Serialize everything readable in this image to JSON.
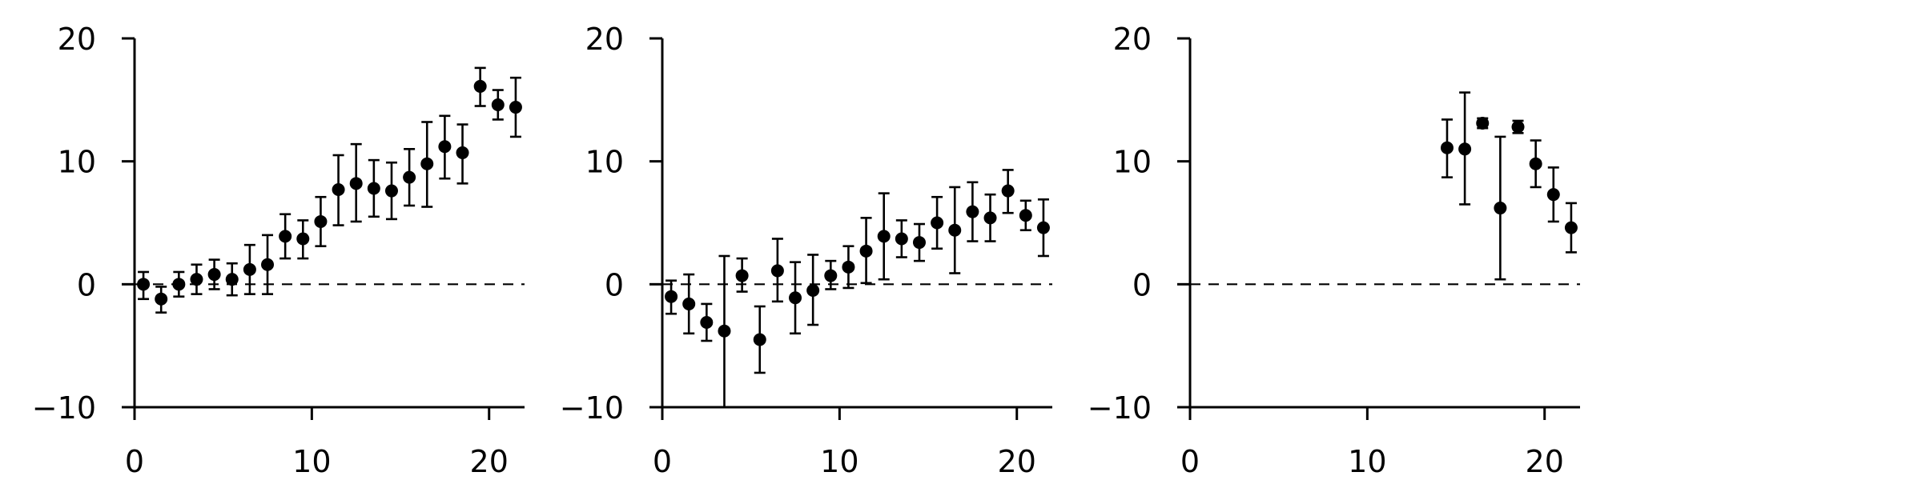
{
  "chart_data": [
    {
      "type": "scatter",
      "xlim": [
        0,
        22
      ],
      "ylim": [
        -10,
        20
      ],
      "xticks": [
        "0",
        "10",
        "20"
      ],
      "yticks": [
        "−10",
        "0",
        "10",
        "20"
      ],
      "grid": false,
      "reference_line": {
        "y": 0,
        "style": "dashed",
        "x_start": 0
      },
      "points": [
        {
          "x": 0.5,
          "y": 0.0,
          "low": -1.2,
          "high": 1.0
        },
        {
          "x": 1.5,
          "y": -1.2,
          "low": -2.3,
          "high": -0.2
        },
        {
          "x": 2.5,
          "y": 0.0,
          "low": -1.0,
          "high": 1.0
        },
        {
          "x": 3.5,
          "y": 0.4,
          "low": -0.8,
          "high": 1.6
        },
        {
          "x": 4.5,
          "y": 0.8,
          "low": -0.4,
          "high": 2.0
        },
        {
          "x": 5.5,
          "y": 0.4,
          "low": -0.9,
          "high": 1.7
        },
        {
          "x": 6.5,
          "y": 1.2,
          "low": -0.8,
          "high": 3.2
        },
        {
          "x": 7.5,
          "y": 1.6,
          "low": -0.8,
          "high": 4.0
        },
        {
          "x": 8.5,
          "y": 3.9,
          "low": 2.1,
          "high": 5.7
        },
        {
          "x": 9.5,
          "y": 3.7,
          "low": 2.1,
          "high": 5.2
        },
        {
          "x": 10.5,
          "y": 5.1,
          "low": 3.1,
          "high": 7.1
        },
        {
          "x": 11.5,
          "y": 7.7,
          "low": 4.8,
          "high": 10.5
        },
        {
          "x": 12.5,
          "y": 8.2,
          "low": 5.1,
          "high": 11.4
        },
        {
          "x": 13.5,
          "y": 7.8,
          "low": 5.5,
          "high": 10.1
        },
        {
          "x": 14.5,
          "y": 7.6,
          "low": 5.3,
          "high": 9.9
        },
        {
          "x": 15.5,
          "y": 8.7,
          "low": 6.4,
          "high": 11.0
        },
        {
          "x": 16.5,
          "y": 9.8,
          "low": 6.3,
          "high": 13.2
        },
        {
          "x": 17.5,
          "y": 11.2,
          "low": 8.6,
          "high": 13.7
        },
        {
          "x": 18.5,
          "y": 10.7,
          "low": 8.2,
          "high": 13.0
        },
        {
          "x": 19.5,
          "y": 16.1,
          "low": 14.5,
          "high": 17.6
        },
        {
          "x": 20.5,
          "y": 14.6,
          "low": 13.4,
          "high": 15.8
        },
        {
          "x": 21.5,
          "y": 14.4,
          "low": 12.0,
          "high": 16.8
        }
      ]
    },
    {
      "type": "scatter",
      "xlim": [
        0,
        22
      ],
      "ylim": [
        -10,
        20
      ],
      "xticks": [
        "0",
        "10",
        "20"
      ],
      "yticks": [
        "−10",
        "0",
        "10",
        "20"
      ],
      "grid": false,
      "reference_line": {
        "y": 0,
        "style": "dashed",
        "x_start": 0
      },
      "points": [
        {
          "x": 0.5,
          "y": -1.0,
          "low": -2.4,
          "high": 0.3
        },
        {
          "x": 1.5,
          "y": -1.6,
          "low": -4.0,
          "high": 0.8
        },
        {
          "x": 2.5,
          "y": -3.1,
          "low": -4.6,
          "high": -1.6
        },
        {
          "x": 3.5,
          "y": -3.8,
          "low": -10.0,
          "high": 2.3
        },
        {
          "x": 4.5,
          "y": 0.7,
          "low": -0.6,
          "high": 2.1
        },
        {
          "x": 5.5,
          "y": -4.5,
          "low": -7.2,
          "high": -1.8
        },
        {
          "x": 6.5,
          "y": 1.1,
          "low": -1.4,
          "high": 3.7
        },
        {
          "x": 7.5,
          "y": -1.1,
          "low": -4.0,
          "high": 1.8
        },
        {
          "x": 8.5,
          "y": -0.5,
          "low": -3.3,
          "high": 2.4
        },
        {
          "x": 9.5,
          "y": 0.7,
          "low": -0.4,
          "high": 1.9
        },
        {
          "x": 10.5,
          "y": 1.4,
          "low": -0.3,
          "high": 3.1
        },
        {
          "x": 11.5,
          "y": 2.7,
          "low": 0.1,
          "high": 5.4
        },
        {
          "x": 12.5,
          "y": 3.9,
          "low": 0.4,
          "high": 7.4
        },
        {
          "x": 13.5,
          "y": 3.7,
          "low": 2.2,
          "high": 5.2
        },
        {
          "x": 14.5,
          "y": 3.4,
          "low": 1.9,
          "high": 4.9
        },
        {
          "x": 15.5,
          "y": 5.0,
          "low": 2.9,
          "high": 7.1
        },
        {
          "x": 16.5,
          "y": 4.4,
          "low": 0.9,
          "high": 7.9
        },
        {
          "x": 17.5,
          "y": 5.9,
          "low": 3.5,
          "high": 8.3
        },
        {
          "x": 18.5,
          "y": 5.4,
          "low": 3.5,
          "high": 7.3
        },
        {
          "x": 19.5,
          "y": 7.6,
          "low": 5.8,
          "high": 9.3
        },
        {
          "x": 20.5,
          "y": 5.6,
          "low": 4.4,
          "high": 6.8
        },
        {
          "x": 21.5,
          "y": 4.6,
          "low": 2.3,
          "high": 6.9
        }
      ]
    },
    {
      "type": "scatter",
      "xlim": [
        0,
        22
      ],
      "ylim": [
        -10,
        20
      ],
      "xticks": [
        "0",
        "10",
        "20"
      ],
      "yticks": [
        "−10",
        "0",
        "10",
        "20"
      ],
      "grid": false,
      "reference_line": {
        "y": 0,
        "style": "dashed",
        "x_start": 0
      },
      "points": [
        {
          "x": 14.5,
          "y": 11.1,
          "low": 8.7,
          "high": 13.4
        },
        {
          "x": 15.5,
          "y": 11.0,
          "low": 6.5,
          "high": 15.6
        },
        {
          "x": 16.5,
          "y": 13.1,
          "low": 12.7,
          "high": 13.5
        },
        {
          "x": 17.5,
          "y": 6.2,
          "low": 0.4,
          "high": 12.0
        },
        {
          "x": 18.5,
          "y": 12.8,
          "low": 12.3,
          "high": 13.3
        },
        {
          "x": 19.5,
          "y": 9.8,
          "low": 7.9,
          "high": 11.7
        },
        {
          "x": 20.5,
          "y": 7.3,
          "low": 5.1,
          "high": 9.5
        },
        {
          "x": 21.5,
          "y": 4.6,
          "low": 2.6,
          "high": 6.6
        }
      ]
    }
  ]
}
